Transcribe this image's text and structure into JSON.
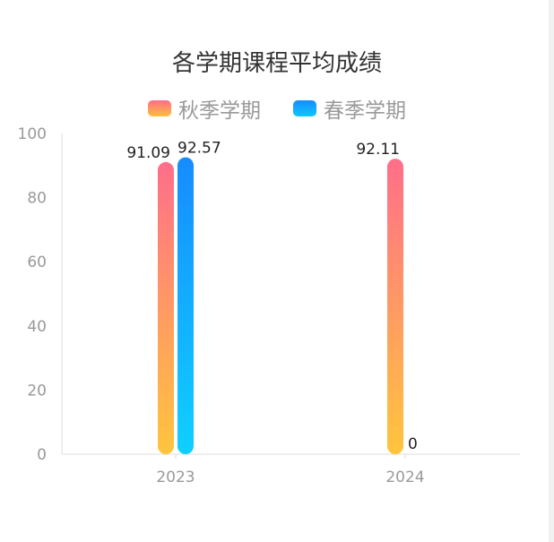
{
  "chart_data": {
    "type": "bar",
    "title": "各学期课程平均成绩",
    "categories": [
      "2023",
      "2024"
    ],
    "series": [
      {
        "name": "秋季学期",
        "values": [
          91.09,
          92.11
        ]
      },
      {
        "name": "春季学期",
        "values": [
          92.57,
          0
        ]
      }
    ],
    "y_ticks": [
      0,
      20,
      40,
      60,
      80,
      100
    ],
    "ylim": [
      0,
      100
    ],
    "legend": "top-center",
    "grid": false
  },
  "colors": {
    "autumn_top": "#ff6e8a",
    "autumn_bottom": "#ffc53d",
    "spring_top": "#168cff",
    "spring_bottom": "#0fd0ff",
    "axis": "#dddddd",
    "tick_text": "#999999",
    "value_text": "#222222"
  }
}
